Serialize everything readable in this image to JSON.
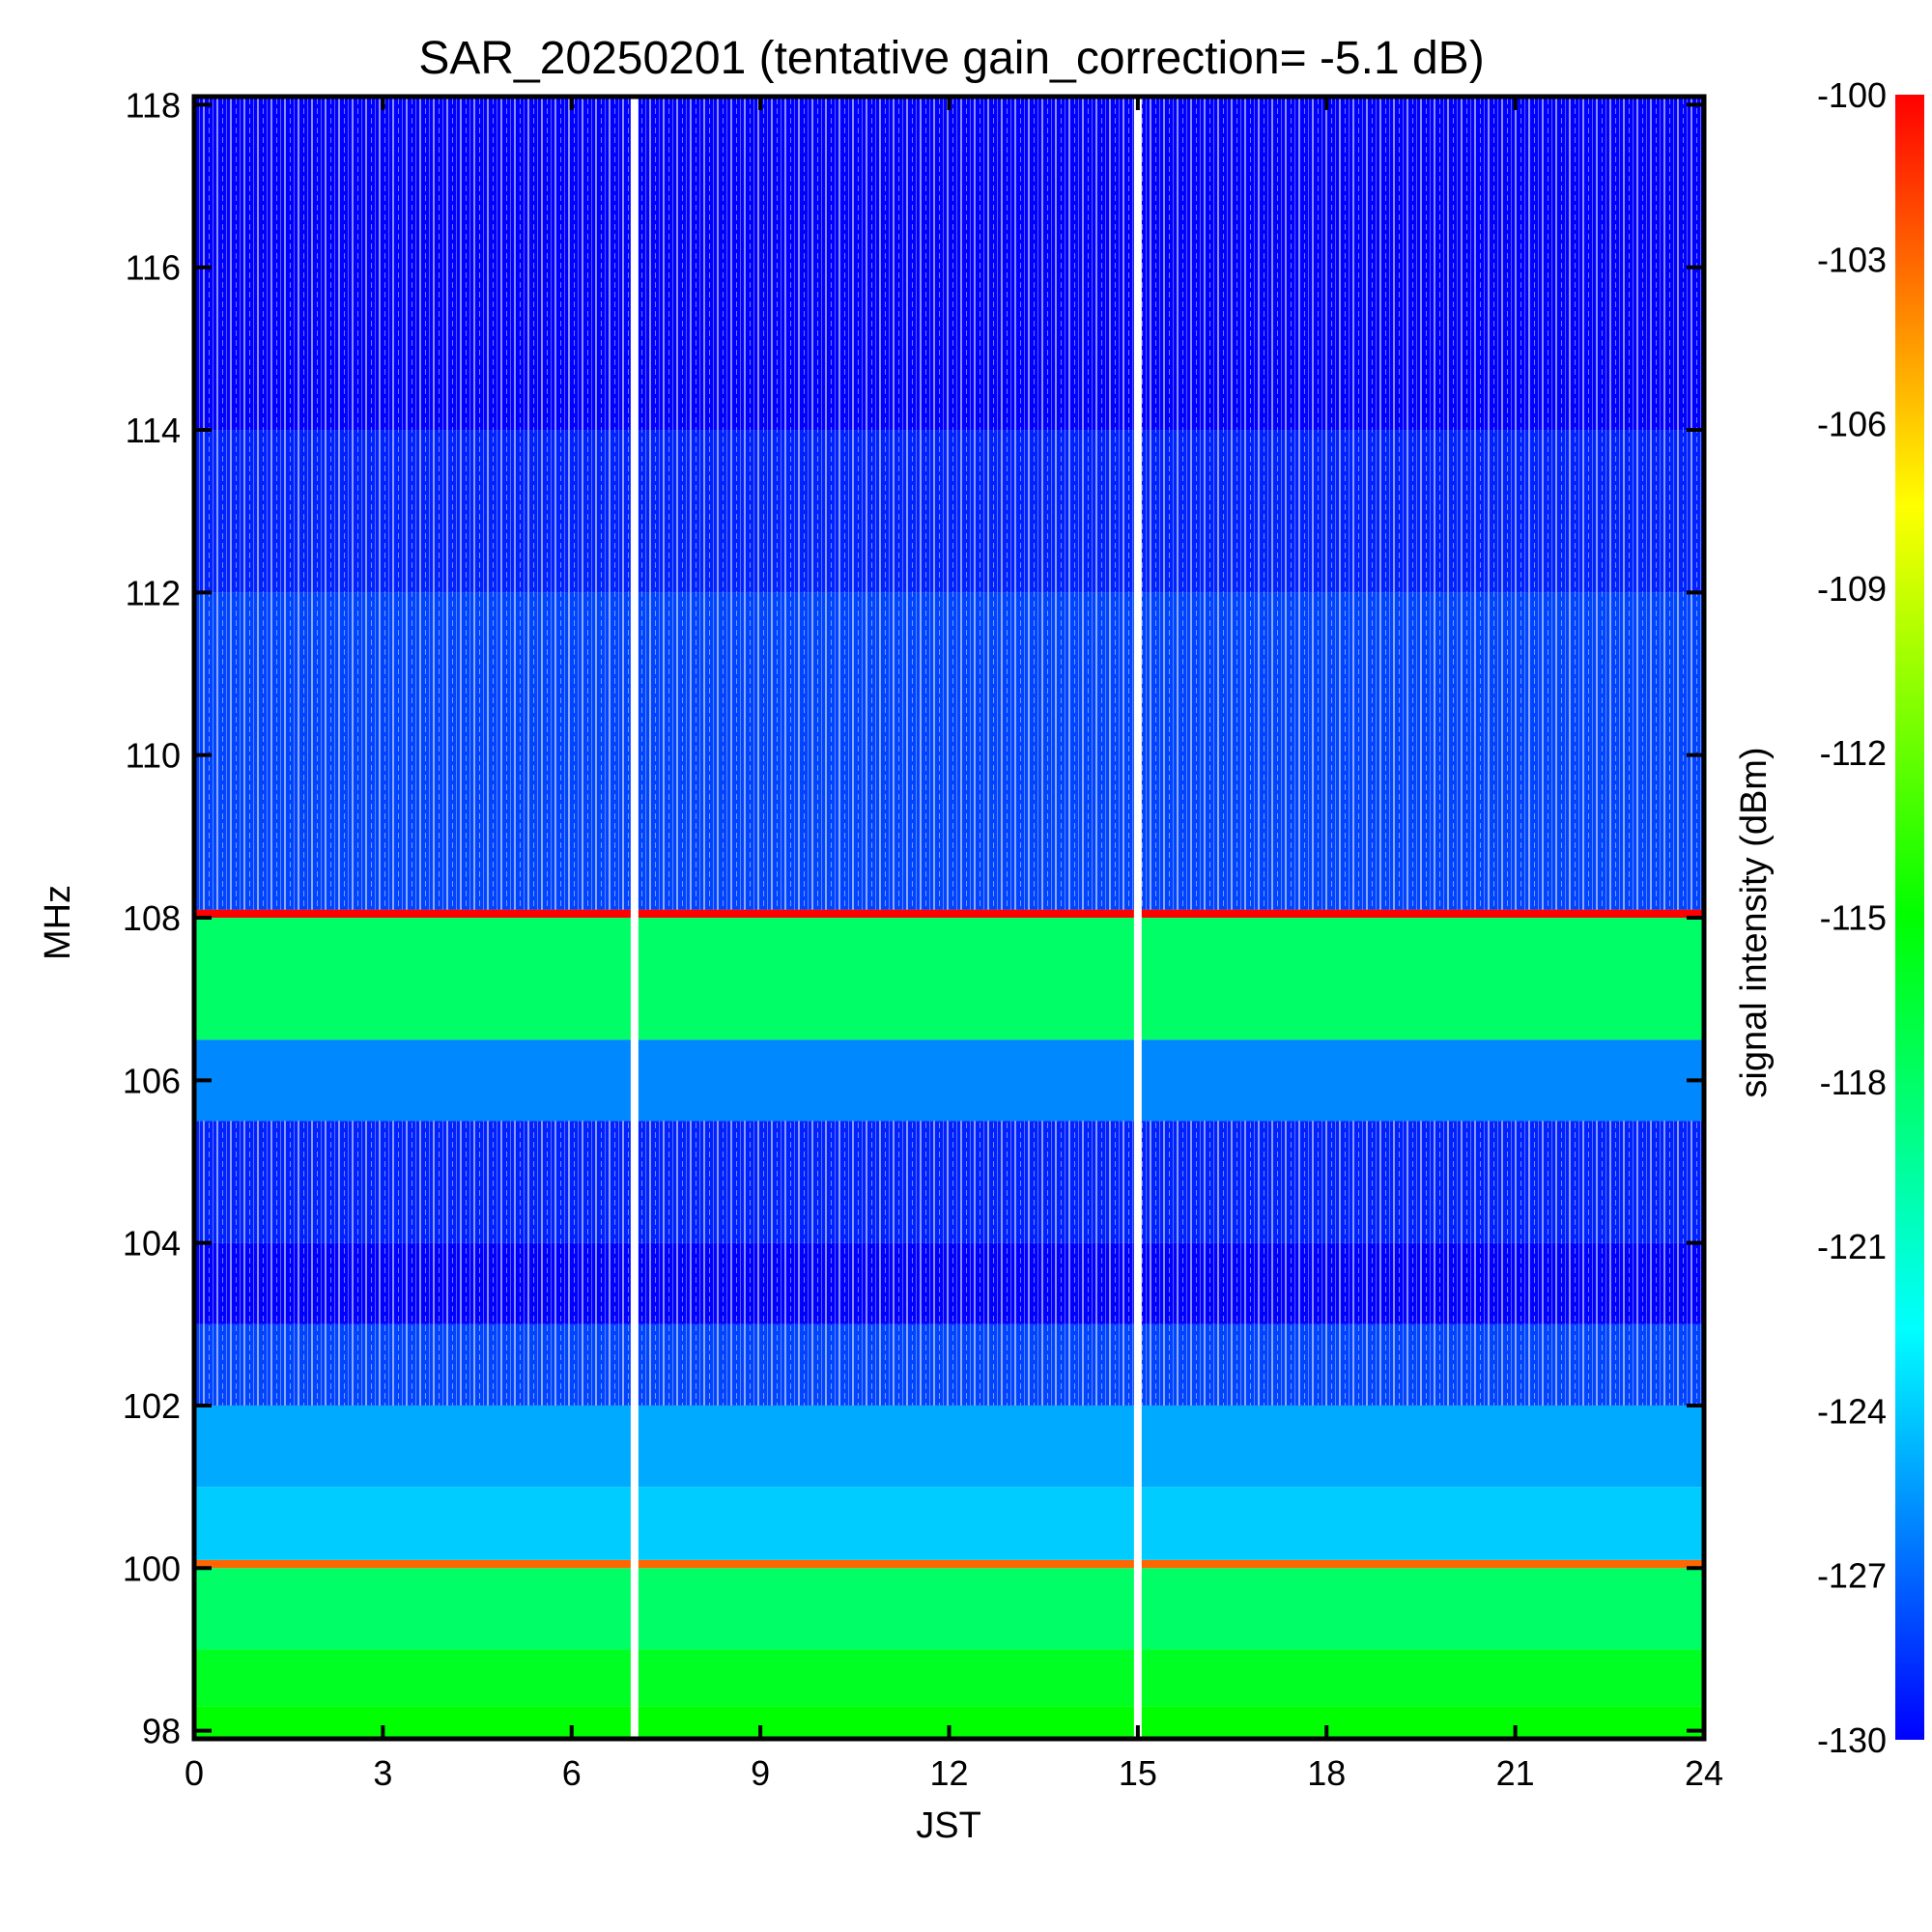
{
  "chart_data": {
    "type": "heatmap",
    "title": "SAR_20250201 (tentative gain_correction= -5.1 dB)",
    "xlabel": "JST",
    "ylabel": "MHz",
    "colorbar_label": "signal intensity (dBm)",
    "xlim": [
      0,
      24
    ],
    "ylim": [
      97.9,
      118.1
    ],
    "x_ticks": [
      "0",
      "3",
      "6",
      "9",
      "12",
      "15",
      "18",
      "21",
      "24"
    ],
    "y_ticks": [
      "98",
      "100",
      "102",
      "104",
      "106",
      "108",
      "110",
      "112",
      "114",
      "116",
      "118"
    ],
    "colorbar_range": [
      -130,
      -100
    ],
    "colorbar_ticks": [
      "-100",
      "-103",
      "-106",
      "-109",
      "-112",
      "-115",
      "-118",
      "-121",
      "-124",
      "-127",
      "-130"
    ],
    "colormap": [
      "#0000ff",
      "#00ffff",
      "#00ff00",
      "#ffff00",
      "#ff0000"
    ],
    "no_data_color": "#ffffff",
    "data_gaps_jst": [
      7.0,
      15.0
    ],
    "bands": [
      {
        "freq_range": [
          97.9,
          98.3
        ],
        "intensity_dbm": -115
      },
      {
        "freq_range": [
          98.3,
          99.0
        ],
        "intensity_dbm": -116
      },
      {
        "freq_range": [
          99.0,
          100.0
        ],
        "intensity_dbm": -118
      },
      {
        "freq_range": [
          100.0,
          100.1
        ],
        "intensity_dbm": -103
      },
      {
        "freq_range": [
          100.1,
          101.0
        ],
        "intensity_dbm": -124
      },
      {
        "freq_range": [
          101.0,
          102.0
        ],
        "intensity_dbm": -125
      },
      {
        "freq_range": [
          102.0,
          103.0
        ],
        "intensity_dbm": -128
      },
      {
        "freq_range": [
          103.0,
          104.0
        ],
        "intensity_dbm": -130
      },
      {
        "freq_range": [
          104.0,
          105.5
        ],
        "intensity_dbm": -129
      },
      {
        "freq_range": [
          105.5,
          106.5
        ],
        "intensity_dbm": -126
      },
      {
        "freq_range": [
          106.5,
          108.0
        ],
        "intensity_dbm": -118
      },
      {
        "freq_range": [
          108.0,
          108.1
        ],
        "intensity_dbm": -100
      },
      {
        "freq_range": [
          108.1,
          112.0
        ],
        "intensity_dbm": -128
      },
      {
        "freq_range": [
          112.0,
          114.0
        ],
        "intensity_dbm": -129
      },
      {
        "freq_range": [
          114.0,
          118.1
        ],
        "intensity_dbm": -130
      }
    ],
    "grid": false
  }
}
